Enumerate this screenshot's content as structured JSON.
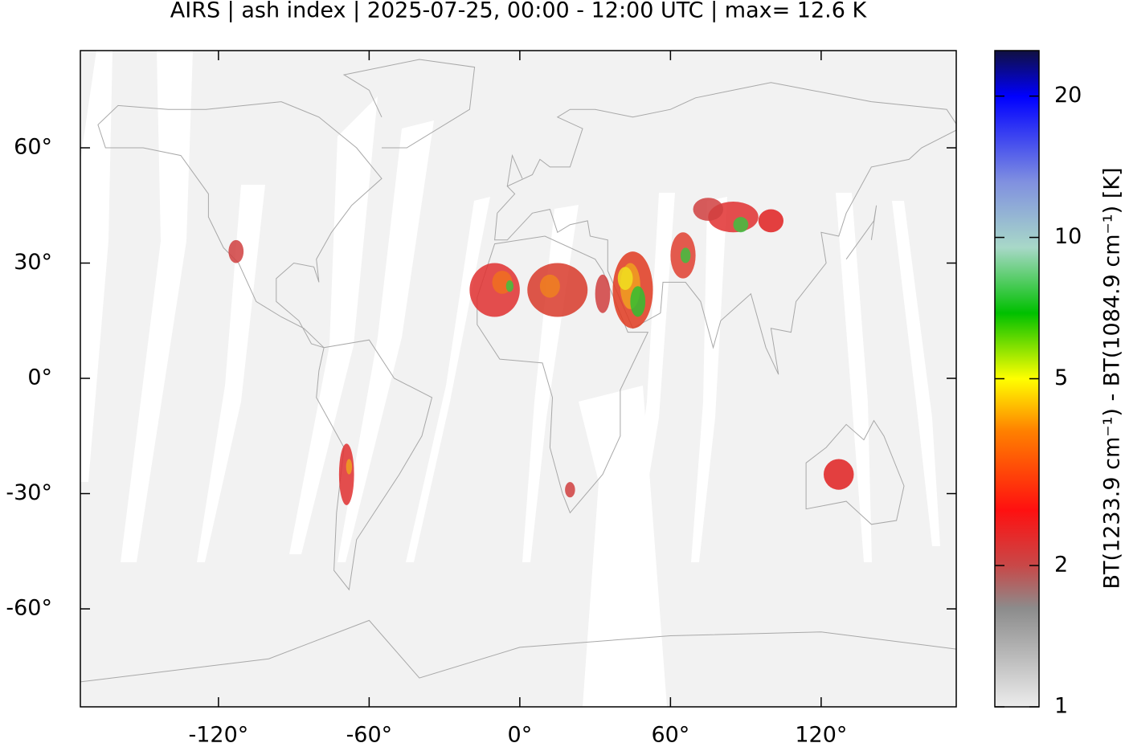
{
  "chart_data": {
    "type": "map",
    "title": "AIRS | ash index | 2025-07-25, 00:00 - 12:00 UTC | max= 12.6 K",
    "xlim": [
      -175,
      173.8
    ],
    "ylim": [
      -85.5,
      85.3
    ],
    "xticks": [
      {
        "value": -120,
        "label": "-120°"
      },
      {
        "value": -60,
        "label": "-60°"
      },
      {
        "value": 0,
        "label": "0°"
      },
      {
        "value": 60,
        "label": "60°"
      },
      {
        "value": 120,
        "label": "120°"
      }
    ],
    "yticks": [
      {
        "value": -60,
        "label": "-60°"
      },
      {
        "value": -30,
        "label": "-30°"
      },
      {
        "value": 0,
        "label": "0°"
      },
      {
        "value": 30,
        "label": "30°"
      },
      {
        "value": 60,
        "label": "60°"
      }
    ],
    "colorbar": {
      "label": "BT(1233.9 cm⁻¹) - BT(1084.9 cm⁻¹) [K]",
      "scale": "log",
      "lim": [
        1,
        25
      ],
      "ticks": [
        1,
        2,
        5,
        10,
        20
      ]
    }
  }
}
